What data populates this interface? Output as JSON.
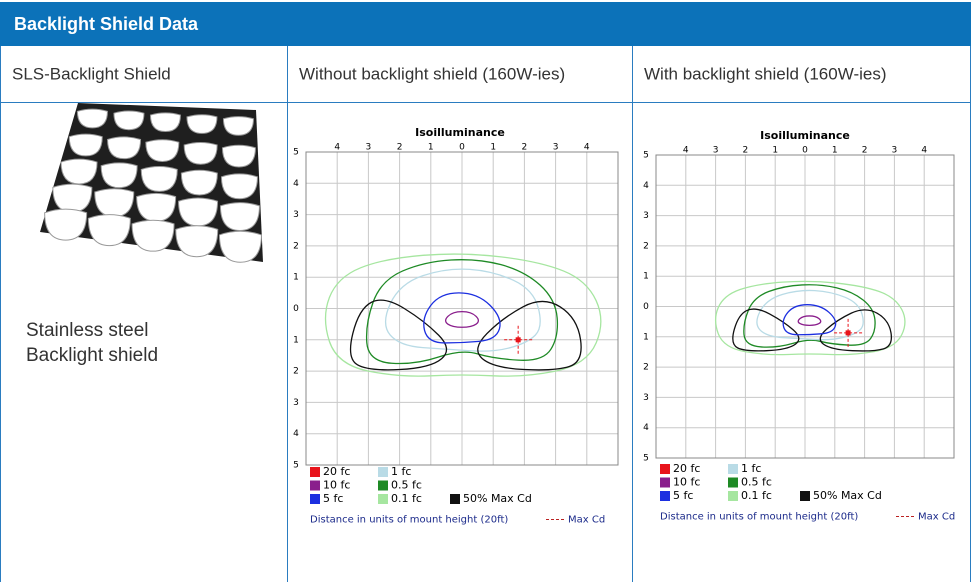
{
  "header": {
    "title": "Backlight Shield Data"
  },
  "table": {
    "columns": [
      "SLS-Backlight Shield",
      "Without backlight shield (160W-ies)",
      "With backlight shield (160W-ies)"
    ],
    "description": [
      "Stainless steel",
      "Backlight shield"
    ],
    "plots": [
      {
        "title": "Isoilluminance",
        "x_labels": [
          "4",
          "3",
          "2",
          "1",
          "0",
          "1",
          "2",
          "3",
          "4"
        ],
        "y_labels": [
          "5",
          "4",
          "3",
          "2",
          "1",
          "0",
          "1",
          "2",
          "3",
          "4",
          "5"
        ],
        "legend": [
          {
            "label": "20 fc",
            "color": "#e8141b"
          },
          {
            "label": "10 fc",
            "color": "#8a1e8c"
          },
          {
            "label": "5 fc",
            "color": "#1c2fe0"
          },
          {
            "label": "1 fc",
            "color": "#b9dbe6"
          },
          {
            "label": "0.5 fc",
            "color": "#1e8a25"
          },
          {
            "label": "0.1 fc",
            "color": "#a6e6a0"
          },
          {
            "label": "50% Max Cd",
            "color": "#111111"
          }
        ],
        "note": "Distance in units of mount height (20ft)",
        "max_cd": "Max Cd"
      },
      {
        "title": "Isoilluminance",
        "x_labels": [
          "4",
          "3",
          "2",
          "1",
          "0",
          "1",
          "2",
          "3",
          "4"
        ],
        "y_labels": [
          "5",
          "4",
          "3",
          "2",
          "1",
          "0",
          "1",
          "2",
          "3",
          "4",
          "5"
        ],
        "legend": [
          {
            "label": "20 fc",
            "color": "#e8141b"
          },
          {
            "label": "10 fc",
            "color": "#8a1e8c"
          },
          {
            "label": "5 fc",
            "color": "#1c2fe0"
          },
          {
            "label": "1 fc",
            "color": "#b9dbe6"
          },
          {
            "label": "0.5 fc",
            "color": "#1e8a25"
          },
          {
            "label": "0.1 fc",
            "color": "#a6e6a0"
          },
          {
            "label": "50% Max Cd",
            "color": "#111111"
          }
        ],
        "note": "Distance in units of mount height (20ft)",
        "max_cd": "Max Cd"
      }
    ]
  }
}
